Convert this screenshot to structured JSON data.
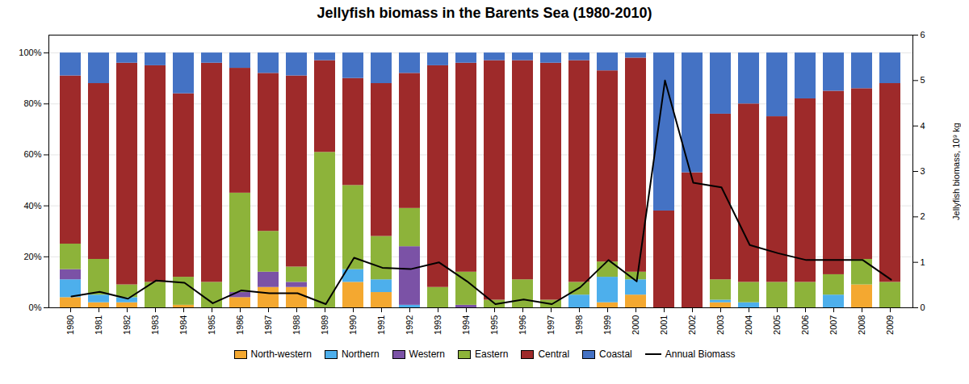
{
  "chart_data": {
    "type": "bar",
    "title": "Jellyfish biomass in the Barents Sea (1980-2010)",
    "stacked": true,
    "categories": [
      "1980",
      "1981",
      "1982",
      "1983",
      "1984",
      "1985",
      "1986",
      "1987",
      "1988",
      "1989",
      "1990",
      "1991",
      "1992",
      "1993",
      "1994",
      "1995",
      "1996",
      "1997",
      "1998",
      "1999",
      "2000",
      "2001",
      "2002",
      "2003",
      "2004",
      "2005",
      "2006",
      "2007",
      "2008",
      "2009"
    ],
    "series": [
      {
        "name": "North-western",
        "color": "#F4A830",
        "values": [
          4,
          2,
          2,
          0,
          1,
          0,
          4,
          8,
          8,
          0,
          10,
          6,
          0,
          0,
          0,
          0,
          0,
          0,
          0,
          2,
          5,
          0,
          0,
          2,
          0,
          0,
          0,
          0,
          9,
          0
        ]
      },
      {
        "name": "Northern",
        "color": "#4DAFEC",
        "values": [
          7,
          3,
          2,
          0,
          0,
          0,
          0,
          0,
          0,
          0,
          5,
          5,
          1,
          0,
          0,
          0,
          0,
          0,
          5,
          10,
          6,
          0,
          0,
          1,
          2,
          0,
          0,
          5,
          0,
          0
        ]
      },
      {
        "name": "Western",
        "color": "#7B52A6",
        "values": [
          4,
          0,
          0,
          0,
          0,
          0,
          2,
          6,
          2,
          0,
          0,
          0,
          23,
          0,
          1,
          0,
          0,
          0,
          0,
          0,
          0,
          0,
          0,
          0,
          0,
          0,
          0,
          0,
          0,
          0
        ]
      },
      {
        "name": "Eastern",
        "color": "#8DB33A",
        "values": [
          10,
          14,
          5,
          10,
          11,
          10,
          39,
          16,
          6,
          61,
          33,
          17,
          15,
          8,
          13,
          3,
          11,
          3,
          5,
          6,
          3,
          0,
          0,
          8,
          8,
          10,
          10,
          8,
          10,
          10
        ]
      },
      {
        "name": "Central",
        "color": "#9E2A2A",
        "values": [
          66,
          69,
          87,
          85,
          72,
          86,
          49,
          62,
          75,
          36,
          42,
          60,
          53,
          87,
          82,
          94,
          86,
          93,
          87,
          75,
          84,
          38,
          53,
          65,
          70,
          65,
          72,
          72,
          67,
          78
        ]
      },
      {
        "name": "Coastal",
        "color": "#4472C4",
        "values": [
          9,
          12,
          4,
          5,
          16,
          4,
          6,
          8,
          9,
          3,
          10,
          12,
          8,
          5,
          4,
          3,
          3,
          4,
          3,
          7,
          2,
          62,
          47,
          24,
          20,
          25,
          18,
          15,
          14,
          12
        ]
      },
      {
        "name": "Annual Biomass",
        "type": "line",
        "axis": "y2",
        "color": "black",
        "values": [
          0.25,
          0.35,
          0.2,
          0.6,
          0.55,
          0.1,
          0.38,
          0.32,
          0.32,
          0.08,
          1.1,
          0.88,
          0.85,
          1.0,
          0.58,
          0.08,
          0.18,
          0.08,
          0.45,
          1.05,
          0.58,
          5.0,
          2.75,
          2.65,
          1.38,
          1.2,
          1.05,
          1.05,
          1.05,
          0.62
        ]
      }
    ],
    "ylim": [
      0,
      107
    ],
    "yticks": [
      {
        "value": 0,
        "label": "0%"
      },
      {
        "value": 20,
        "label": "20%"
      },
      {
        "value": 40,
        "label": "40%"
      },
      {
        "value": 60,
        "label": "60%"
      },
      {
        "value": 80,
        "label": "80%"
      },
      {
        "value": 100,
        "label": "100%"
      }
    ],
    "y2lim": [
      0,
      6
    ],
    "y2ticks": [
      0,
      1,
      2,
      3,
      4,
      5,
      6
    ],
    "y2label": "Jellyfish biomass, 10⁹ kg",
    "grid": true,
    "legend": "bottom"
  }
}
